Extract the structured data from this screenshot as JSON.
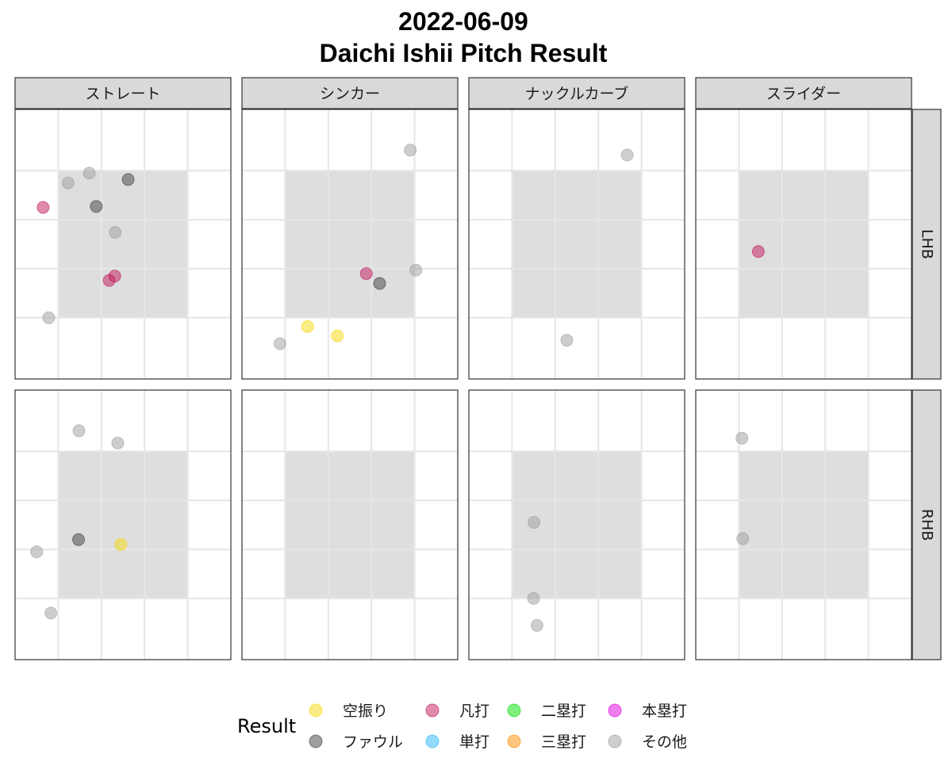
{
  "chart_data": {
    "type": "scatter",
    "title_line1": "2022-06-09",
    "title_line2": "Daichi Ishii Pitch Result",
    "pitch_types": [
      "ストレート",
      "シンカー",
      "ナックルカーブ",
      "スライダー"
    ],
    "batter_sides": [
      "LHB",
      "RHB"
    ],
    "x_range": [
      -2.5,
      2.5
    ],
    "y_range": [
      0,
      5.5
    ],
    "x_grid": [
      -1.5,
      -0.5,
      0.5,
      1.5
    ],
    "y_grid": [
      1.25,
      2.25,
      3.25,
      4.25
    ],
    "strike_zone": {
      "x": [
        -1.5,
        1.5
      ],
      "y": [
        1.25,
        4.25
      ]
    },
    "legend": {
      "title": "Result",
      "items": [
        {
          "label": "空振り",
          "color": "#F5D90A"
        },
        {
          "label": "ファウル",
          "color": "#404040"
        },
        {
          "label": "凡打",
          "color": "#C2185B"
        },
        {
          "label": "単打",
          "color": "#29B6F6"
        },
        {
          "label": "二塁打",
          "color": "#00E000"
        },
        {
          "label": "三塁打",
          "color": "#FB8C00"
        },
        {
          "label": "本塁打",
          "color": "#E000E0"
        },
        {
          "label": "その他",
          "color": "#9E9E9E"
        }
      ]
    },
    "panels": [
      {
        "pitch": "ストレート",
        "side": "LHB",
        "points": [
          {
            "x": -1.27,
            "y": 4.0,
            "result": "その他"
          },
          {
            "x": -0.78,
            "y": 4.2,
            "result": "その他"
          },
          {
            "x": 0.12,
            "y": 4.07,
            "result": "ファウル"
          },
          {
            "x": -1.85,
            "y": 3.5,
            "result": "凡打"
          },
          {
            "x": -0.62,
            "y": 3.52,
            "result": "ファウル"
          },
          {
            "x": -0.18,
            "y": 2.99,
            "result": "その他"
          },
          {
            "x": -0.19,
            "y": 2.1,
            "result": "凡打"
          },
          {
            "x": -0.32,
            "y": 2.01,
            "result": "凡打"
          },
          {
            "x": -1.72,
            "y": 1.25,
            "result": "その他"
          }
        ]
      },
      {
        "pitch": "シンカー",
        "side": "LHB",
        "points": [
          {
            "x": 1.4,
            "y": 4.67,
            "result": "その他"
          },
          {
            "x": 0.38,
            "y": 2.15,
            "result": "凡打"
          },
          {
            "x": 0.69,
            "y": 1.95,
            "result": "ファウル"
          },
          {
            "x": 1.53,
            "y": 2.22,
            "result": "その他"
          },
          {
            "x": -0.98,
            "y": 1.07,
            "result": "空振り"
          },
          {
            "x": -0.29,
            "y": 0.88,
            "result": "空振り"
          },
          {
            "x": -1.62,
            "y": 0.72,
            "result": "その他"
          }
        ]
      },
      {
        "pitch": "ナックルカーブ",
        "side": "LHB",
        "points": [
          {
            "x": 1.17,
            "y": 4.57,
            "result": "その他"
          },
          {
            "x": -0.23,
            "y": 0.79,
            "result": "その他"
          }
        ]
      },
      {
        "pitch": "スライダー",
        "side": "LHB",
        "points": [
          {
            "x": -1.05,
            "y": 2.6,
            "result": "凡打"
          }
        ]
      },
      {
        "pitch": "ストレート",
        "side": "RHB",
        "points": [
          {
            "x": -1.02,
            "y": 4.67,
            "result": "その他"
          },
          {
            "x": -0.12,
            "y": 4.42,
            "result": "その他"
          },
          {
            "x": -1.03,
            "y": 2.45,
            "result": "ファウル"
          },
          {
            "x": -2.0,
            "y": 2.2,
            "result": "その他"
          },
          {
            "x": -0.05,
            "y": 2.35,
            "result": "空振り"
          },
          {
            "x": -1.67,
            "y": 0.95,
            "result": "その他"
          }
        ]
      },
      {
        "pitch": "シンカー",
        "side": "RHB",
        "points": []
      },
      {
        "pitch": "ナックルカーブ",
        "side": "RHB",
        "points": [
          {
            "x": -0.99,
            "y": 2.8,
            "result": "その他"
          },
          {
            "x": -1.0,
            "y": 1.25,
            "result": "その他"
          },
          {
            "x": -0.92,
            "y": 0.7,
            "result": "その他"
          }
        ]
      },
      {
        "pitch": "スライダー",
        "side": "RHB",
        "points": [
          {
            "x": -1.43,
            "y": 4.52,
            "result": "その他"
          },
          {
            "x": -1.41,
            "y": 2.47,
            "result": "その他"
          }
        ]
      }
    ]
  }
}
